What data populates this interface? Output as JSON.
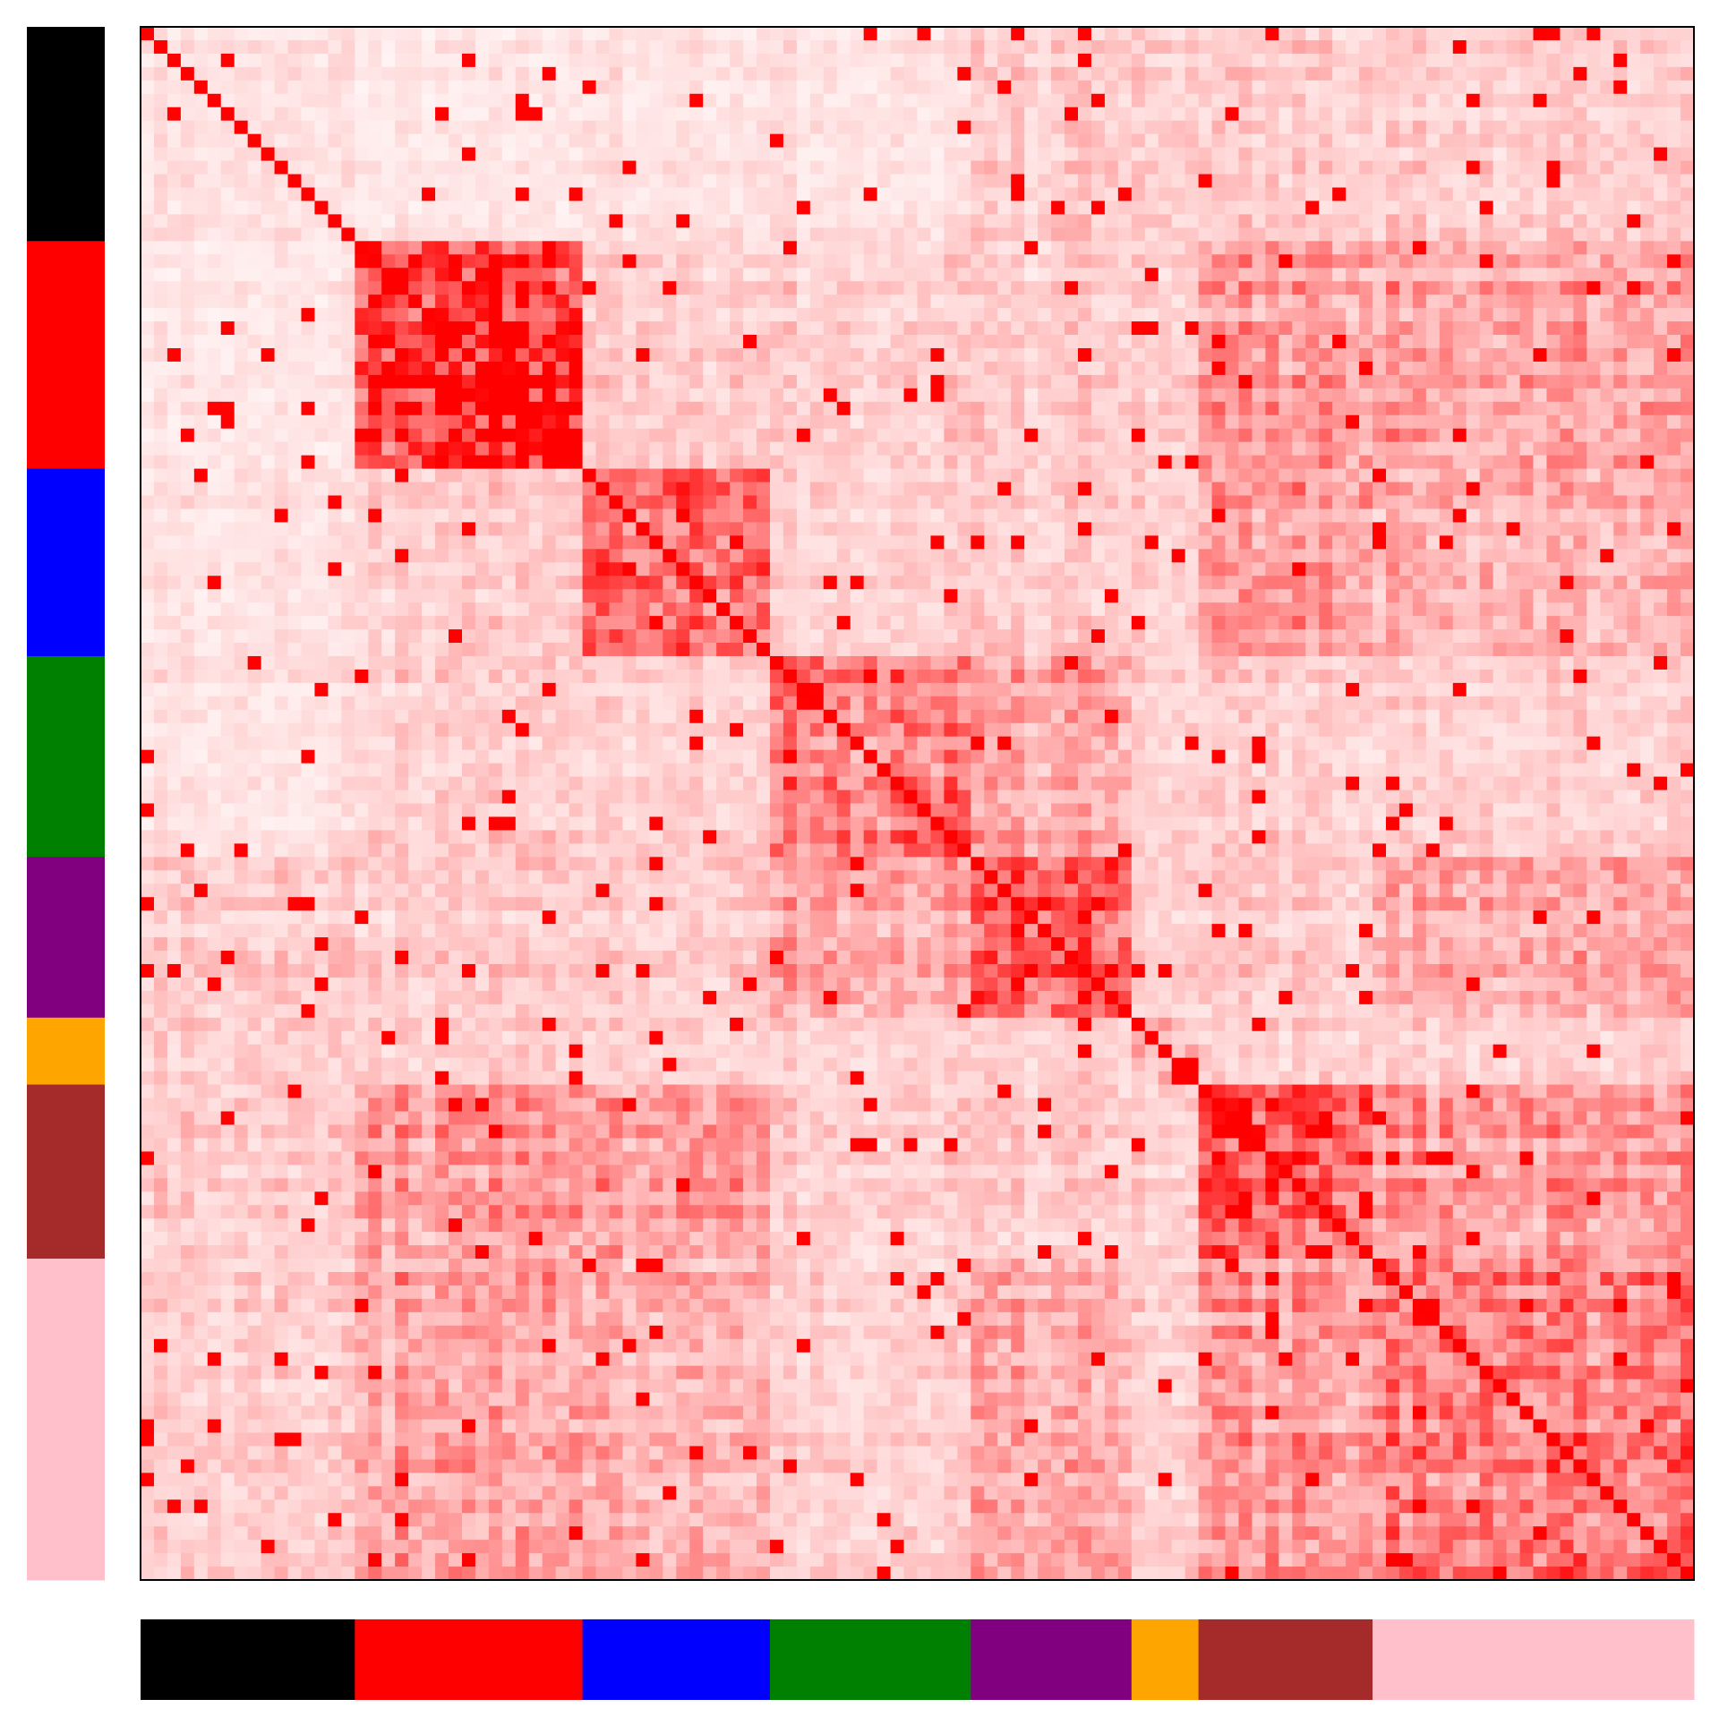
{
  "chart_data": {
    "type": "heatmap",
    "title": "",
    "xlabel": "",
    "ylabel": "",
    "n": 116,
    "colormap": {
      "low": "#ffffff",
      "high": "#ff0000"
    },
    "value_range": [
      0,
      1
    ],
    "diagonal_value": 1,
    "frame_color": "#000000",
    "modules": [
      {
        "color": "#000000",
        "start": 0,
        "end": 16
      },
      {
        "color": "#ff0000",
        "start": 16,
        "end": 33
      },
      {
        "color": "#0000ff",
        "start": 33,
        "end": 47
      },
      {
        "color": "#008000",
        "start": 47,
        "end": 62
      },
      {
        "color": "#800080",
        "start": 62,
        "end": 74
      },
      {
        "color": "#ffa500",
        "start": 74,
        "end": 79
      },
      {
        "color": "#a52a2a",
        "start": 79,
        "end": 92
      },
      {
        "color": "#ffc0cb",
        "start": 92,
        "end": 116
      }
    ],
    "within_module_strength": [
      0.12,
      0.85,
      0.6,
      0.55,
      0.6,
      0.3,
      0.65,
      0.55
    ],
    "between_module_strength": 0.2,
    "block_affinities": [
      {
        "a": 1,
        "b": 6,
        "value": 0.38
      },
      {
        "a": 1,
        "b": 7,
        "value": 0.36
      },
      {
        "a": 2,
        "b": 6,
        "value": 0.4
      },
      {
        "a": 2,
        "b": 7,
        "value": 0.32
      },
      {
        "a": 3,
        "b": 4,
        "value": 0.35
      },
      {
        "a": 4,
        "b": 7,
        "value": 0.33
      },
      {
        "a": 6,
        "b": 7,
        "value": 0.4
      },
      {
        "a": 0,
        "b": 1,
        "value": 0.1
      },
      {
        "a": 0,
        "b": 2,
        "value": 0.12
      },
      {
        "a": 0,
        "b": 3,
        "value": 0.12
      }
    ]
  }
}
